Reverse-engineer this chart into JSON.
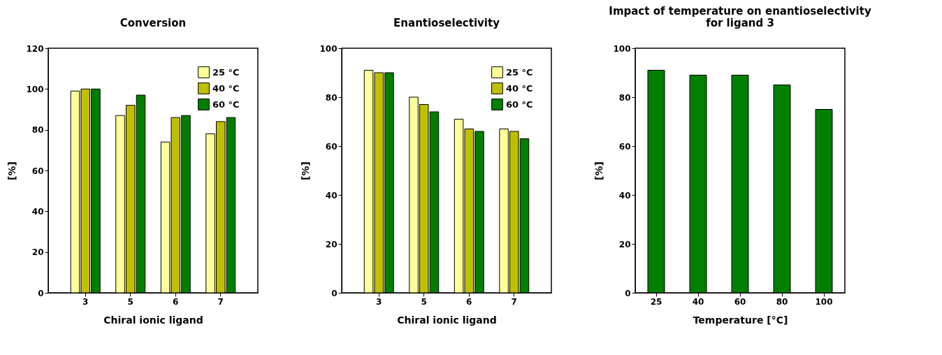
{
  "chart_data": [
    {
      "type": "bar",
      "title": "Conversion",
      "xlabel": "Chiral ionic ligand",
      "ylabel": "[%]",
      "categories": [
        "3",
        "5",
        "6",
        "7"
      ],
      "series": [
        {
          "name": "25 °C",
          "color": "#ffff99",
          "values": [
            99,
            87,
            74,
            78
          ]
        },
        {
          "name": "40 °C",
          "color": "#bfbf00",
          "values": [
            100,
            92,
            86,
            84
          ]
        },
        {
          "name": "60 °C",
          "color": "#007f00",
          "values": [
            100,
            97,
            87,
            86
          ]
        }
      ],
      "ylim": [
        0,
        120
      ],
      "yticks": [
        0,
        20,
        40,
        60,
        80,
        100,
        120
      ],
      "grid": false,
      "legend": "top right"
    },
    {
      "type": "bar",
      "title": "Enantioselectivity",
      "xlabel": "Chiral ionic ligand",
      "ylabel": "[%]",
      "categories": [
        "3",
        "5",
        "6",
        "7"
      ],
      "series": [
        {
          "name": "25 °C",
          "color": "#ffff99",
          "values": [
            91,
            80,
            71,
            67
          ]
        },
        {
          "name": "40 °C",
          "color": "#bfbf00",
          "values": [
            90,
            77,
            67,
            66
          ]
        },
        {
          "name": "60 °C",
          "color": "#007f00",
          "values": [
            90,
            74,
            66,
            63
          ]
        }
      ],
      "ylim": [
        0,
        100
      ],
      "yticks": [
        0,
        20,
        40,
        60,
        80,
        100
      ],
      "grid": false,
      "legend": "top right"
    },
    {
      "type": "bar",
      "title": "Impact of temperature on enantioselectivity\nfor ligand 3",
      "xlabel": "Temperature [°C]",
      "ylabel": "[%]",
      "categories": [
        "25",
        "40",
        "60",
        "80",
        "100"
      ],
      "series": [
        {
          "color": "#007f00",
          "values": [
            91,
            89,
            89,
            85,
            75
          ]
        }
      ],
      "ylim": [
        0,
        100
      ],
      "yticks": [
        0,
        20,
        40,
        60,
        80,
        100
      ],
      "grid": false,
      "legend": false
    }
  ]
}
